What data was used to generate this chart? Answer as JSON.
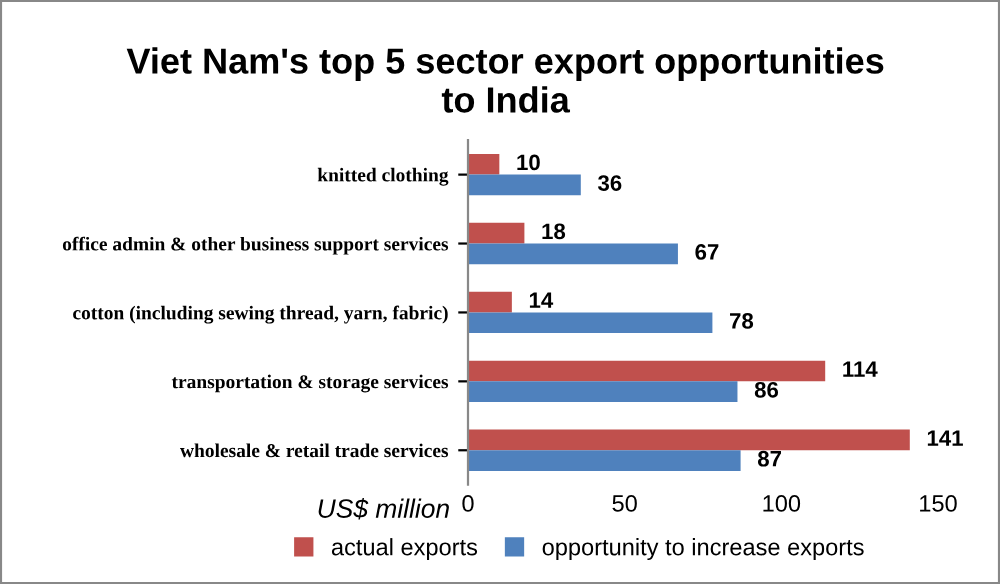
{
  "chart_data": {
    "type": "bar",
    "orientation": "horizontal",
    "title": "Viet Nam's top 5 sector export opportunities\nto India",
    "xlabel": "US$ million",
    "categories": [
      "knitted clothing",
      "office admin & other business support services",
      "cotton (including sewing thread, yarn, fabric)",
      "transportation & storage services",
      "wholesale & retail trade services"
    ],
    "series": [
      {
        "name": "actual exports",
        "color": "#c0504d",
        "values": [
          10,
          18,
          14,
          114,
          141
        ]
      },
      {
        "name": "opportunity to increase exports",
        "color": "#4f81bd",
        "values": [
          36,
          67,
          78,
          86,
          87
        ]
      }
    ],
    "xlim": [
      0,
      150
    ],
    "xticks": [
      0,
      50,
      100,
      150
    ],
    "data_labels": true,
    "legend": "bottom",
    "grid": false
  }
}
